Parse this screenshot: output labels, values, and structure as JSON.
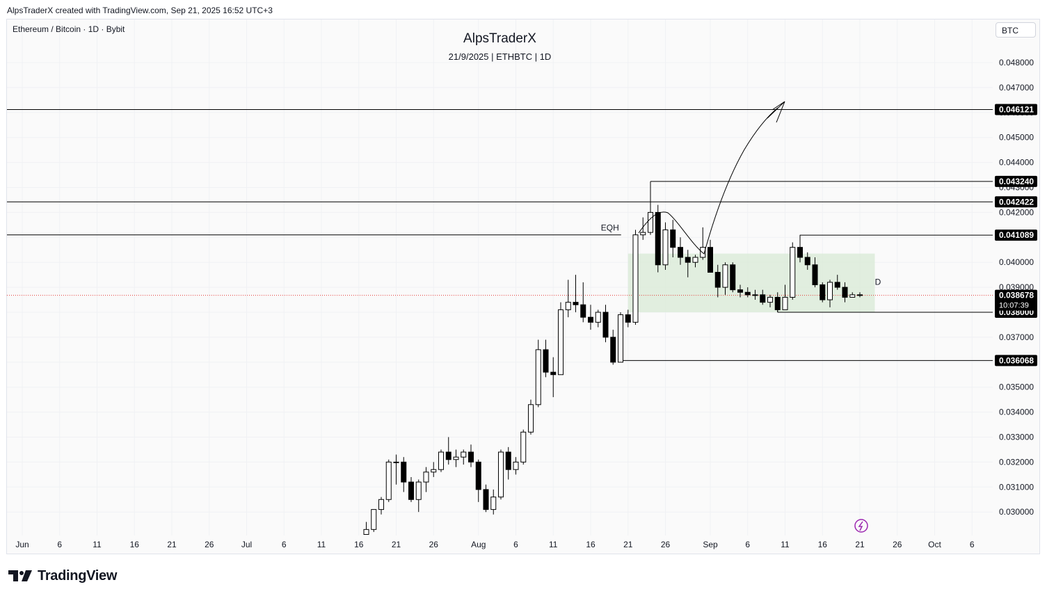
{
  "header": "AlpsTraderX created with TradingView.com, Sep 21, 2025 16:52 UTC+3",
  "symbol_line": "Ethereum / Bitcoin · 1D · Bybit",
  "currency_button": "BTC",
  "brand": "TradingView",
  "colors": {
    "up_body": "#ffffff",
    "down_body": "#000000",
    "wick": "#000000",
    "range_box": "#dcebd9",
    "price_line": "#e53935",
    "alert_icon": "#9c27b0"
  },
  "chart_data": {
    "type": "candlestick",
    "title": "AlpsTraderX",
    "subtitle": "21/9/2025 | ETHBTC | 1D",
    "ylim": [
      0.0292,
      0.0494
    ],
    "y_ticks": [
      "0.048000",
      "0.047000",
      "0.046000",
      "0.045000",
      "0.044000",
      "0.043000",
      "0.042000",
      "0.041000",
      "0.040000",
      "0.039000",
      "0.038000",
      "0.037000",
      "0.036000",
      "0.035000",
      "0.034000",
      "0.033000",
      "0.032000",
      "0.031000",
      "0.030000"
    ],
    "x_ticks": [
      "Jun",
      "6",
      "11",
      "16",
      "21",
      "26",
      "Jul",
      "6",
      "11",
      "16",
      "21",
      "26",
      "Aug",
      "6",
      "11",
      "16",
      "21",
      "26",
      "Sep",
      "6",
      "11",
      "16",
      "21",
      "26",
      "Oct",
      "6"
    ],
    "grid": true,
    "candles": [
      {
        "date": "2025-07-17",
        "o": 0.0291,
        "h": 0.0296,
        "l": 0.0291,
        "c": 0.0293
      },
      {
        "date": "2025-07-18",
        "o": 0.0293,
        "h": 0.0301,
        "l": 0.0292,
        "c": 0.0301
      },
      {
        "date": "2025-07-19",
        "o": 0.0301,
        "h": 0.0306,
        "l": 0.0299,
        "c": 0.0305
      },
      {
        "date": "2025-07-20",
        "o": 0.0305,
        "h": 0.0321,
        "l": 0.0304,
        "c": 0.032
      },
      {
        "date": "2025-07-21",
        "o": 0.032,
        "h": 0.0323,
        "l": 0.0311,
        "c": 0.032
      },
      {
        "date": "2025-07-22",
        "o": 0.032,
        "h": 0.0322,
        "l": 0.0308,
        "c": 0.0312
      },
      {
        "date": "2025-07-23",
        "o": 0.0312,
        "h": 0.0314,
        "l": 0.0304,
        "c": 0.0305
      },
      {
        "date": "2025-07-24",
        "o": 0.0305,
        "h": 0.0313,
        "l": 0.03,
        "c": 0.0312
      },
      {
        "date": "2025-07-25",
        "o": 0.0312,
        "h": 0.0318,
        "l": 0.0308,
        "c": 0.0316
      },
      {
        "date": "2025-07-26",
        "o": 0.0316,
        "h": 0.032,
        "l": 0.0314,
        "c": 0.0317
      },
      {
        "date": "2025-07-27",
        "o": 0.0317,
        "h": 0.0325,
        "l": 0.0316,
        "c": 0.0324
      },
      {
        "date": "2025-07-28",
        "o": 0.0324,
        "h": 0.033,
        "l": 0.0319,
        "c": 0.0321
      },
      {
        "date": "2025-07-29",
        "o": 0.0321,
        "h": 0.0325,
        "l": 0.0318,
        "c": 0.0322
      },
      {
        "date": "2025-07-30",
        "o": 0.0322,
        "h": 0.0325,
        "l": 0.0319,
        "c": 0.0324
      },
      {
        "date": "2025-07-31",
        "o": 0.0324,
        "h": 0.0327,
        "l": 0.0318,
        "c": 0.032
      },
      {
        "date": "2025-08-01",
        "o": 0.032,
        "h": 0.0321,
        "l": 0.0304,
        "c": 0.0309
      },
      {
        "date": "2025-08-02",
        "o": 0.0309,
        "h": 0.0311,
        "l": 0.03,
        "c": 0.0301
      },
      {
        "date": "2025-08-03",
        "o": 0.0301,
        "h": 0.0309,
        "l": 0.0299,
        "c": 0.0306
      },
      {
        "date": "2025-08-04",
        "o": 0.0306,
        "h": 0.0325,
        "l": 0.0305,
        "c": 0.0324
      },
      {
        "date": "2025-08-05",
        "o": 0.0324,
        "h": 0.0326,
        "l": 0.0313,
        "c": 0.0317
      },
      {
        "date": "2025-08-06",
        "o": 0.0317,
        "h": 0.0322,
        "l": 0.0315,
        "c": 0.032
      },
      {
        "date": "2025-08-07",
        "o": 0.032,
        "h": 0.0333,
        "l": 0.0319,
        "c": 0.0332
      },
      {
        "date": "2025-08-08",
        "o": 0.0332,
        "h": 0.0345,
        "l": 0.0331,
        "c": 0.0343
      },
      {
        "date": "2025-08-09",
        "o": 0.0343,
        "h": 0.0369,
        "l": 0.0342,
        "c": 0.0365
      },
      {
        "date": "2025-08-10",
        "o": 0.0365,
        "h": 0.0369,
        "l": 0.0354,
        "c": 0.0356
      },
      {
        "date": "2025-08-11",
        "o": 0.0356,
        "h": 0.0362,
        "l": 0.0346,
        "c": 0.0355
      },
      {
        "date": "2025-08-12",
        "o": 0.0355,
        "h": 0.0384,
        "l": 0.0355,
        "c": 0.0381
      },
      {
        "date": "2025-08-13",
        "o": 0.0381,
        "h": 0.0393,
        "l": 0.0378,
        "c": 0.0384
      },
      {
        "date": "2025-08-14",
        "o": 0.0384,
        "h": 0.0395,
        "l": 0.038,
        "c": 0.0383
      },
      {
        "date": "2025-08-15",
        "o": 0.0383,
        "h": 0.0392,
        "l": 0.0376,
        "c": 0.0378
      },
      {
        "date": "2025-08-16",
        "o": 0.0378,
        "h": 0.0383,
        "l": 0.0373,
        "c": 0.0376
      },
      {
        "date": "2025-08-17",
        "o": 0.0376,
        "h": 0.0381,
        "l": 0.0374,
        "c": 0.038
      },
      {
        "date": "2025-08-18",
        "o": 0.038,
        "h": 0.0383,
        "l": 0.0368,
        "c": 0.037
      },
      {
        "date": "2025-08-19",
        "o": 0.037,
        "h": 0.0373,
        "l": 0.0359,
        "c": 0.036
      },
      {
        "date": "2025-08-20",
        "o": 0.036,
        "h": 0.038,
        "l": 0.036,
        "c": 0.0379
      },
      {
        "date": "2025-08-21",
        "o": 0.0379,
        "h": 0.0381,
        "l": 0.0374,
        "c": 0.0376
      },
      {
        "date": "2025-08-22",
        "o": 0.0376,
        "h": 0.0413,
        "l": 0.0375,
        "c": 0.0411
      },
      {
        "date": "2025-08-23",
        "o": 0.0411,
        "h": 0.0418,
        "l": 0.0409,
        "c": 0.0412
      },
      {
        "date": "2025-08-24",
        "o": 0.0412,
        "h": 0.0432,
        "l": 0.0411,
        "c": 0.042
      },
      {
        "date": "2025-08-25",
        "o": 0.042,
        "h": 0.0423,
        "l": 0.0396,
        "c": 0.0399
      },
      {
        "date": "2025-08-26",
        "o": 0.0399,
        "h": 0.0416,
        "l": 0.0397,
        "c": 0.0413
      },
      {
        "date": "2025-08-27",
        "o": 0.0413,
        "h": 0.0417,
        "l": 0.0402,
        "c": 0.0406
      },
      {
        "date": "2025-08-28",
        "o": 0.0406,
        "h": 0.041,
        "l": 0.0399,
        "c": 0.0402
      },
      {
        "date": "2025-08-29",
        "o": 0.0402,
        "h": 0.0405,
        "l": 0.0394,
        "c": 0.04
      },
      {
        "date": "2025-08-30",
        "o": 0.04,
        "h": 0.0403,
        "l": 0.0398,
        "c": 0.0402
      },
      {
        "date": "2025-08-31",
        "o": 0.0402,
        "h": 0.0414,
        "l": 0.0401,
        "c": 0.0406
      },
      {
        "date": "2025-09-01",
        "o": 0.0406,
        "h": 0.0409,
        "l": 0.0396,
        "c": 0.0396
      },
      {
        "date": "2025-09-02",
        "o": 0.0396,
        "h": 0.0399,
        "l": 0.0386,
        "c": 0.039
      },
      {
        "date": "2025-09-03",
        "o": 0.039,
        "h": 0.04,
        "l": 0.0387,
        "c": 0.0399
      },
      {
        "date": "2025-09-04",
        "o": 0.0399,
        "h": 0.04,
        "l": 0.0388,
        "c": 0.0389
      },
      {
        "date": "2025-09-05",
        "o": 0.0389,
        "h": 0.0391,
        "l": 0.0386,
        "c": 0.0388
      },
      {
        "date": "2025-09-06",
        "o": 0.0388,
        "h": 0.039,
        "l": 0.0386,
        "c": 0.0387
      },
      {
        "date": "2025-09-07",
        "o": 0.0387,
        "h": 0.0389,
        "l": 0.0385,
        "c": 0.0387
      },
      {
        "date": "2025-09-08",
        "o": 0.0387,
        "h": 0.0389,
        "l": 0.0383,
        "c": 0.0384
      },
      {
        "date": "2025-09-09",
        "o": 0.0384,
        "h": 0.0387,
        "l": 0.0382,
        "c": 0.0386
      },
      {
        "date": "2025-09-10",
        "o": 0.0386,
        "h": 0.0388,
        "l": 0.038,
        "c": 0.0381
      },
      {
        "date": "2025-09-11",
        "o": 0.0381,
        "h": 0.0391,
        "l": 0.0381,
        "c": 0.0386
      },
      {
        "date": "2025-09-12",
        "o": 0.0386,
        "h": 0.0408,
        "l": 0.0385,
        "c": 0.0406
      },
      {
        "date": "2025-09-13",
        "o": 0.0406,
        "h": 0.0411,
        "l": 0.04,
        "c": 0.0402
      },
      {
        "date": "2025-09-14",
        "o": 0.0402,
        "h": 0.0404,
        "l": 0.0397,
        "c": 0.0399
      },
      {
        "date": "2025-09-15",
        "o": 0.0399,
        "h": 0.0402,
        "l": 0.039,
        "c": 0.0391
      },
      {
        "date": "2025-09-16",
        "o": 0.0391,
        "h": 0.0392,
        "l": 0.0384,
        "c": 0.0385
      },
      {
        "date": "2025-09-17",
        "o": 0.0385,
        "h": 0.0393,
        "l": 0.0382,
        "c": 0.0392
      },
      {
        "date": "2025-09-18",
        "o": 0.0392,
        "h": 0.0395,
        "l": 0.0389,
        "c": 0.039
      },
      {
        "date": "2025-09-19",
        "o": 0.039,
        "h": 0.0392,
        "l": 0.0384,
        "c": 0.0386
      },
      {
        "date": "2025-09-20",
        "o": 0.0386,
        "h": 0.0388,
        "l": 0.0386,
        "c": 0.0387
      },
      {
        "date": "2025-09-21",
        "o": 0.0387,
        "h": 0.0388,
        "l": 0.0386,
        "c": 0.0387
      }
    ],
    "levels": [
      {
        "price": 0.046121,
        "label": "0.046121",
        "start": "Jun"
      },
      {
        "price": 0.04324,
        "label": "0.043240",
        "start": "2025-08-24"
      },
      {
        "price": 0.042422,
        "label": "0.042422",
        "start": "Jun"
      },
      {
        "price": 0.041089,
        "label": "0.041089",
        "start": "2025-09-13"
      },
      {
        "price": 0.038,
        "label": "0.038000",
        "start": "2025-09-10"
      },
      {
        "price": 0.036068,
        "label": "0.036068",
        "start": "2025-08-20"
      }
    ],
    "eqh": {
      "price": 0.0411,
      "label": "EQH",
      "end": "2025-08-21"
    },
    "range_box": {
      "top": 0.04035,
      "bottom": 0.038,
      "start": "2025-08-21",
      "end": "2025-09-23",
      "label": "D"
    },
    "last_price": {
      "value": "0.038678",
      "price": 0.038678,
      "countdown": "10:07:39"
    }
  }
}
